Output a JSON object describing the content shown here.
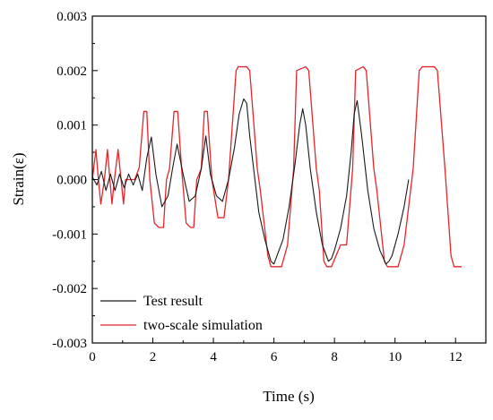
{
  "chart_data": {
    "type": "line",
    "title": "",
    "xlabel": "Time (s)",
    "ylabel": "Strain(ε)",
    "xlim": [
      0,
      13
    ],
    "ylim": [
      -0.003,
      0.003
    ],
    "x_ticks": [
      0,
      2,
      4,
      6,
      8,
      10,
      12
    ],
    "x_tick_labels": [
      "0",
      "2",
      "4",
      "6",
      "8",
      "10",
      "12"
    ],
    "y_ticks": [
      -0.003,
      -0.002,
      -0.001,
      0,
      0.001,
      0.002,
      0.003
    ],
    "y_tick_labels": [
      "-0.003",
      "-0.002",
      "-0.001",
      "0.000",
      "0.001",
      "0.002",
      "0.003"
    ],
    "grid": false,
    "legend_position": "bottom-left",
    "series": [
      {
        "name": "Test result",
        "color": "#1a1a1a",
        "x": [
          0.0,
          0.15,
          0.3,
          0.45,
          0.6,
          0.75,
          0.9,
          1.05,
          1.2,
          1.35,
          1.5,
          1.65,
          1.8,
          1.95,
          2.1,
          2.3,
          2.5,
          2.65,
          2.8,
          3.0,
          3.2,
          3.4,
          3.6,
          3.75,
          3.9,
          4.1,
          4.3,
          4.5,
          4.7,
          4.85,
          5.0,
          5.1,
          5.2,
          5.35,
          5.5,
          5.7,
          5.9,
          6.0,
          6.1,
          6.3,
          6.5,
          6.7,
          6.85,
          6.95,
          7.05,
          7.2,
          7.4,
          7.6,
          7.8,
          7.9,
          8.0,
          8.2,
          8.4,
          8.55,
          8.65,
          8.75,
          8.9,
          9.1,
          9.3,
          9.5,
          9.7,
          9.8,
          9.9,
          10.1,
          10.3,
          10.45
        ],
        "y": [
          5e-05,
          -0.0001,
          0.00015,
          -0.0002,
          0.0001,
          -0.0002,
          0.0001,
          -0.00015,
          0.0001,
          -0.0001,
          0.0001,
          -0.0002,
          0.0004,
          0.00078,
          0.0001,
          -0.0005,
          -0.0003,
          0.0002,
          0.00065,
          0.0001,
          -0.0004,
          -0.0003,
          0.0002,
          0.0008,
          0.0001,
          -0.0003,
          -0.0004,
          0.0,
          0.0006,
          0.0012,
          0.00148,
          0.0014,
          0.0008,
          0.0001,
          -0.0006,
          -0.0011,
          -0.0015,
          -0.00155,
          -0.0014,
          -0.0011,
          -0.0005,
          0.0003,
          0.001,
          0.0013,
          0.001,
          0.0002,
          -0.0006,
          -0.0012,
          -0.0015,
          -0.00145,
          -0.0013,
          -0.0009,
          -0.0003,
          0.0005,
          0.0012,
          0.00145,
          0.0008,
          -0.0002,
          -0.0009,
          -0.0013,
          -0.00155,
          -0.0015,
          -0.0014,
          -0.001,
          -0.0005,
          0.0
        ]
      },
      {
        "name": "two-scale simulation",
        "color": "#e4262b",
        "x": [
          0.0,
          0.12,
          0.2,
          0.28,
          0.4,
          0.5,
          0.58,
          0.65,
          0.73,
          0.85,
          0.95,
          1.03,
          1.1,
          1.18,
          1.3,
          1.4,
          1.55,
          1.7,
          1.8,
          1.9,
          2.05,
          2.2,
          2.35,
          2.45,
          2.55,
          2.7,
          2.82,
          2.95,
          3.1,
          3.25,
          3.35,
          3.45,
          3.6,
          3.7,
          3.8,
          3.95,
          4.15,
          4.35,
          4.5,
          4.75,
          4.82,
          5.1,
          5.2,
          5.45,
          5.55,
          5.8,
          5.9,
          6.25,
          6.45,
          6.65,
          6.75,
          7.05,
          7.15,
          7.4,
          7.5,
          7.65,
          7.75,
          7.9,
          8.2,
          8.4,
          8.6,
          8.7,
          8.95,
          9.05,
          9.3,
          9.4,
          9.65,
          9.75,
          10.1,
          10.3,
          10.6,
          10.8,
          10.9,
          11.3,
          11.4,
          11.65,
          11.85,
          11.95,
          12.2
        ],
        "y": [
          0.0,
          0.00055,
          0.0,
          -0.00045,
          0.0,
          0.00055,
          0.0,
          -0.00045,
          0.0,
          0.00055,
          0.0,
          -0.00045,
          0.0,
          0.0,
          0.0,
          0.0,
          0.00022,
          0.00125,
          0.00125,
          0.0,
          -0.0008,
          -0.00088,
          -0.00088,
          0.0,
          0.0002,
          0.00125,
          0.00125,
          0.0002,
          -0.0008,
          -0.00088,
          -0.00088,
          0.0,
          0.0002,
          0.00125,
          0.00125,
          0.0,
          -0.0007,
          -0.0007,
          0.0,
          0.002,
          0.00207,
          0.00207,
          0.002,
          0.0002,
          -0.0002,
          -0.0014,
          -0.0016,
          -0.0016,
          -0.0012,
          0.0002,
          0.002,
          0.00207,
          0.002,
          0.0002,
          -0.0002,
          -0.0015,
          -0.0016,
          -0.0016,
          -0.0012,
          -0.0012,
          0.0002,
          0.002,
          0.00207,
          0.002,
          0.0002,
          -0.0002,
          -0.0015,
          -0.0016,
          -0.0016,
          -0.0012,
          0.0002,
          0.002,
          0.00207,
          0.00207,
          0.002,
          0.0002,
          -0.0014,
          -0.0016,
          -0.0016
        ]
      }
    ]
  }
}
